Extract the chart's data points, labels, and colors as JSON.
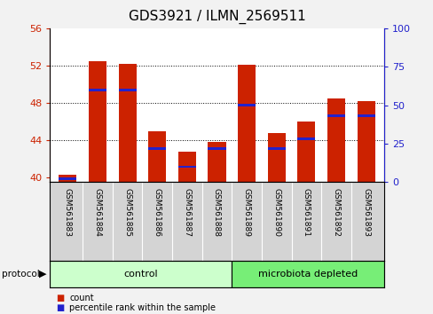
{
  "title": "GDS3921 / ILMN_2569511",
  "samples": [
    "GSM561883",
    "GSM561884",
    "GSM561885",
    "GSM561886",
    "GSM561887",
    "GSM561888",
    "GSM561889",
    "GSM561890",
    "GSM561891",
    "GSM561892",
    "GSM561893"
  ],
  "count_values": [
    40.3,
    52.5,
    52.2,
    45.0,
    42.8,
    43.8,
    52.1,
    44.8,
    46.0,
    48.5,
    48.2
  ],
  "percentile_values": [
    2.0,
    60.0,
    60.0,
    22.0,
    10.0,
    22.0,
    50.0,
    22.0,
    28.0,
    43.0,
    43.0
  ],
  "ylim_left": [
    39.5,
    56
  ],
  "ylim_right": [
    0,
    100
  ],
  "yticks_left": [
    40,
    44,
    48,
    52,
    56
  ],
  "yticks_right": [
    0,
    25,
    50,
    75,
    100
  ],
  "bar_color_red": "#cc2200",
  "bar_color_blue": "#2222cc",
  "bar_width": 0.6,
  "protocol_groups": [
    6,
    5
  ],
  "protocol_color_control": "#ccffcc",
  "protocol_color_depleted": "#77ee77",
  "bg_color": "#f2f2f2",
  "plot_bg": "#ffffff",
  "label_bg": "#d4d4d4",
  "title_fontsize": 11,
  "tick_fontsize": 8,
  "left_tick_color": "#cc2200",
  "right_tick_color": "#2222cc"
}
